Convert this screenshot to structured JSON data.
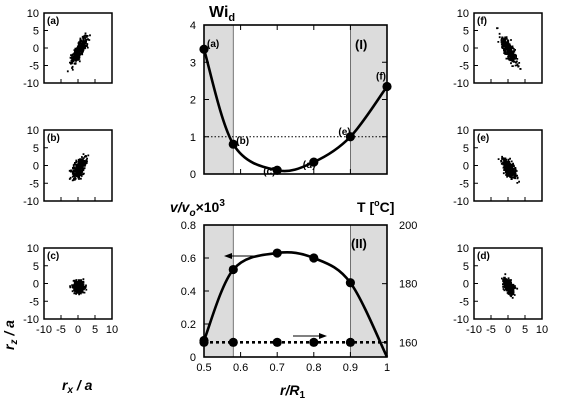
{
  "chart_data": [
    {
      "id": "wi",
      "type": "line",
      "title_main": "Wi",
      "title_sub": "d",
      "roman_label": "(I)",
      "xlim": [
        0.5,
        1.0
      ],
      "ylim": [
        0,
        4
      ],
      "y_ticks": [
        0,
        1,
        2,
        3,
        4
      ],
      "shaded_regions": [
        [
          0.5,
          0.58
        ],
        [
          0.9,
          1.0
        ]
      ],
      "reference_line_y": 1,
      "series": [
        {
          "x": [
            0.5,
            0.58,
            0.7,
            0.8,
            0.9,
            1.0
          ],
          "values": [
            3.35,
            0.8,
            0.1,
            0.32,
            1.0,
            2.35
          ],
          "point_labels": [
            "(a)",
            "(b)",
            "(c)",
            "(d)",
            "(e)",
            "(f)"
          ]
        }
      ]
    },
    {
      "id": "velocity",
      "type": "line",
      "ylabel_left": "v/v",
      "ylabel_left_sub": "o",
      "ylabel_left_factor": "×10",
      "ylabel_left_exp": "3",
      "ylabel_right": "T [",
      "ylabel_right_sup": "o",
      "ylabel_right_end": "C]",
      "roman_label": "(II)",
      "xlabel": "r/R",
      "xlabel_sub": "1",
      "xlim": [
        0.5,
        1.0
      ],
      "x_ticks": [
        "0.5",
        "0.6",
        "0.7",
        "0.8",
        "0.9",
        "1"
      ],
      "ylim": [
        0,
        0.8
      ],
      "y_ticks": [
        "0",
        "0.2",
        "0.4",
        "0.6",
        "0.8"
      ],
      "ylim_right": [
        155,
        200
      ],
      "y_ticks_right": [
        "160",
        "180",
        "200"
      ],
      "shaded_regions": [
        [
          0.5,
          0.58
        ],
        [
          0.9,
          1.0
        ]
      ],
      "series": [
        {
          "axis": "left",
          "x": [
            0.5,
            0.58,
            0.7,
            0.8,
            0.9,
            1.0
          ],
          "values": [
            0.1,
            0.53,
            0.63,
            0.6,
            0.45,
            0.0
          ]
        },
        {
          "axis": "right",
          "style": "dotted",
          "x": [
            0.5,
            0.58,
            0.7,
            0.8,
            0.9,
            1.0
          ],
          "values": [
            160,
            160,
            160,
            160,
            160,
            160
          ]
        }
      ]
    },
    {
      "id": "scatter-panels",
      "type": "scatter",
      "xlabel": "r",
      "xlabel_sub": "x",
      "xlabel_rest": " / a",
      "ylabel": "r",
      "ylabel_sub": "z",
      "ylabel_rest": " / a",
      "xlim": [
        -10,
        10
      ],
      "ylim": [
        -10,
        10
      ],
      "x_ticks": [
        "-10",
        "-5",
        "0",
        "5",
        "10"
      ],
      "y_ticks": [
        "-10",
        "-5",
        "0",
        "5",
        "10"
      ],
      "panels": [
        {
          "label": "(a)",
          "column": "left",
          "row": 0,
          "tilt": "positive",
          "spread": "wide"
        },
        {
          "label": "(b)",
          "column": "left",
          "row": 1,
          "tilt": "positive",
          "spread": "medium"
        },
        {
          "label": "(c)",
          "column": "left",
          "row": 2,
          "tilt": "none",
          "spread": "round"
        },
        {
          "label": "(f)",
          "column": "right",
          "row": 0,
          "tilt": "negative",
          "spread": "wide"
        },
        {
          "label": "(e)",
          "column": "right",
          "row": 1,
          "tilt": "negative",
          "spread": "medium"
        },
        {
          "label": "(d)",
          "column": "right",
          "row": 2,
          "tilt": "negative",
          "spread": "small"
        }
      ]
    }
  ]
}
